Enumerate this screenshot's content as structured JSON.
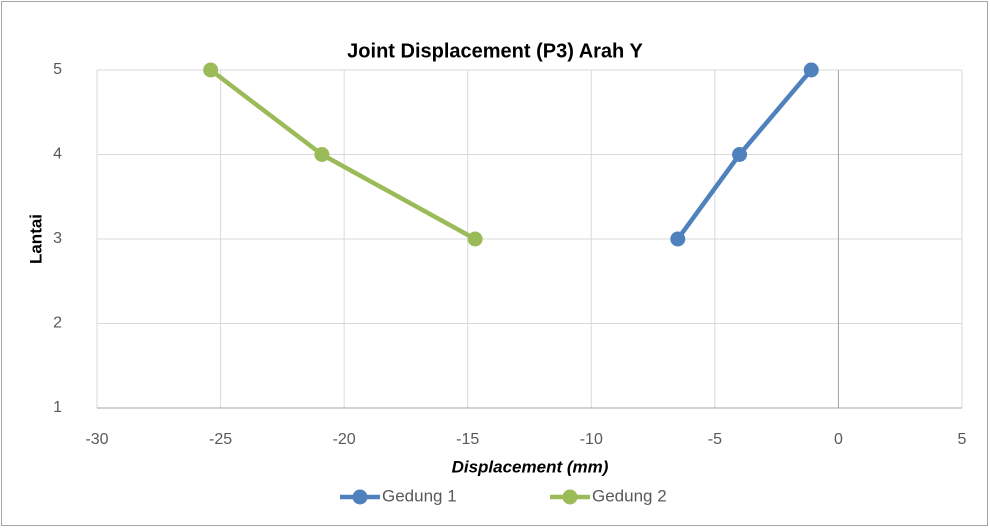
{
  "chart_data": {
    "type": "line",
    "title": "Joint Displacement (P3) Arah Y",
    "x_label": "Displacement (mm)",
    "y_label": "Lantai",
    "xlim": [
      -30,
      5
    ],
    "xticks": [
      -30,
      -25,
      -20,
      -15,
      -10,
      -5,
      0,
      5
    ],
    "ylim": [
      1,
      5
    ],
    "yticks": [
      1,
      2,
      3,
      4,
      5
    ],
    "grid": true,
    "legend": "bottom",
    "series": [
      {
        "name": "Gedung 1",
        "color": "#4f81bd",
        "x": [
          -6.5,
          -4.0,
          -1.1
        ],
        "values": [
          3,
          4,
          5
        ]
      },
      {
        "name": "Gedung 2",
        "color": "#9bbb59",
        "x": [
          -14.7,
          -20.9,
          -25.4
        ],
        "values": [
          3,
          4,
          5
        ]
      }
    ]
  }
}
